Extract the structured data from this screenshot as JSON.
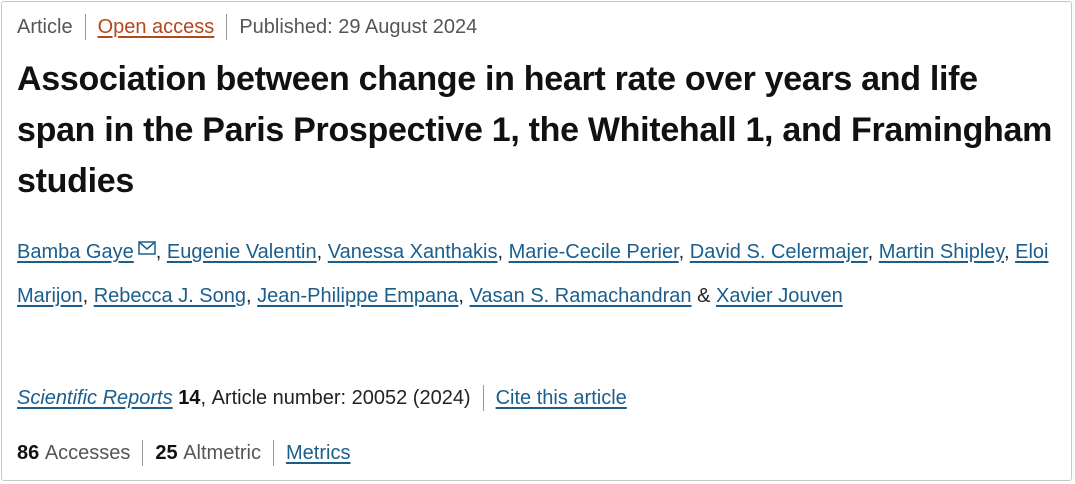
{
  "meta": {
    "type": "Article",
    "access": "Open access",
    "published": "Published: 29 August 2024"
  },
  "title": "Association between change in heart rate over years and life span in the Paris Prospective 1, the Whitehall 1, and Framingham studies",
  "authors": [
    "Bamba Gaye",
    "Eugenie Valentin",
    "Vanessa Xanthakis",
    "Marie-Cecile Perier",
    "David S. Celermajer",
    "Martin Shipley",
    "Eloi Marijon",
    "Rebecca J. Song",
    "Jean-Philippe Empana",
    "Vasan S. Ramachandran",
    "Xavier Jouven"
  ],
  "author_separator": ",",
  "author_conjunction": "&",
  "citation": {
    "journal": "Scientific Reports",
    "volume": 14,
    "separator": ",",
    "article": "Article number: 20052 (2024)",
    "cite_link": "Cite this article"
  },
  "metrics": {
    "accesses_count": 86,
    "accesses_label": "Accesses",
    "altmetric_count": 25,
    "altmetric_label": "Altmetric",
    "link": "Metrics"
  }
}
